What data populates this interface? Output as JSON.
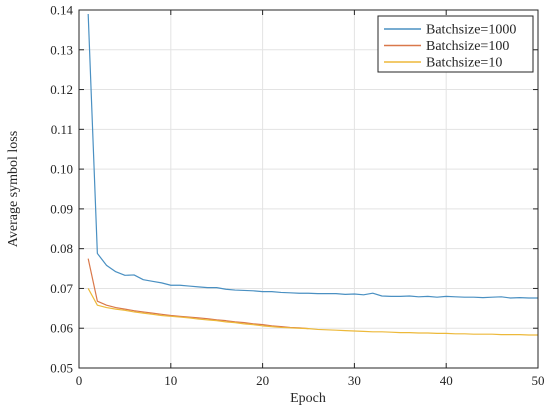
{
  "chart_data": {
    "type": "line",
    "xlabel": "Epoch",
    "ylabel": "Average symbol loss",
    "xlim": [
      0,
      50
    ],
    "ylim": [
      0.05,
      0.14
    ],
    "xticks": [
      0,
      10,
      20,
      30,
      40,
      50
    ],
    "xtick_labels": [
      "0",
      "10",
      "20",
      "30",
      "40",
      "50"
    ],
    "yticks": [
      0.05,
      0.06,
      0.07,
      0.08,
      0.09,
      0.1,
      0.11,
      0.12,
      0.13,
      0.14
    ],
    "ytick_labels": [
      "0.05",
      "0.06",
      "0.07",
      "0.08",
      "0.09",
      "0.10",
      "0.11",
      "0.12",
      "0.13",
      "0.14"
    ],
    "grid": true,
    "legend_position": "top-right",
    "series": [
      {
        "name": "Batchsize=1000",
        "color": "#4a90c2",
        "x": [
          1,
          2,
          3,
          4,
          5,
          6,
          7,
          8,
          9,
          10,
          11,
          12,
          13,
          14,
          15,
          16,
          17,
          18,
          19,
          20,
          21,
          22,
          23,
          24,
          25,
          26,
          27,
          28,
          29,
          30,
          31,
          32,
          33,
          34,
          35,
          36,
          37,
          38,
          39,
          40,
          41,
          42,
          43,
          44,
          45,
          46,
          47,
          48,
          49,
          50
        ],
        "y": [
          0.139,
          0.0788,
          0.0758,
          0.0742,
          0.0733,
          0.0734,
          0.0722,
          0.0718,
          0.0714,
          0.0708,
          0.0708,
          0.0706,
          0.0704,
          0.0702,
          0.0702,
          0.0698,
          0.0696,
          0.0695,
          0.0694,
          0.0692,
          0.0692,
          0.069,
          0.0689,
          0.0688,
          0.0688,
          0.0687,
          0.0687,
          0.0687,
          0.0685,
          0.0686,
          0.0684,
          0.0688,
          0.0681,
          0.068,
          0.068,
          0.0681,
          0.0679,
          0.068,
          0.0678,
          0.068,
          0.0679,
          0.0678,
          0.0678,
          0.0677,
          0.0678,
          0.0679,
          0.0676,
          0.0677,
          0.0676,
          0.0676
        ]
      },
      {
        "name": "Batchsize=100",
        "color": "#d9784a",
        "x": [
          1,
          2,
          3,
          4,
          5,
          6,
          7,
          8,
          9,
          10,
          11,
          12,
          13,
          14,
          15,
          16,
          17,
          18,
          19,
          20,
          21,
          22,
          23,
          24,
          25
        ],
        "y": [
          0.0775,
          0.0668,
          0.0658,
          0.0652,
          0.0648,
          0.0644,
          0.0641,
          0.0638,
          0.0635,
          0.0632,
          0.063,
          0.0628,
          0.0626,
          0.0624,
          0.0621,
          0.0619,
          0.0616,
          0.0614,
          0.0611,
          0.0609,
          0.0606,
          0.0604,
          0.0602,
          0.0601,
          0.0599
        ]
      },
      {
        "name": "Batchsize=10",
        "color": "#edb93a",
        "x": [
          1,
          2,
          3,
          4,
          5,
          6,
          7,
          8,
          9,
          10,
          11,
          12,
          13,
          14,
          15,
          16,
          17,
          18,
          19,
          20,
          21,
          22,
          23,
          24,
          25,
          26,
          27,
          28,
          29,
          30,
          31,
          32,
          33,
          34,
          35,
          36,
          37,
          38,
          39,
          40,
          41,
          42,
          43,
          44,
          45,
          46,
          47,
          48,
          49,
          50
        ],
        "y": [
          0.07,
          0.0658,
          0.0652,
          0.0648,
          0.0645,
          0.0641,
          0.0638,
          0.0635,
          0.0632,
          0.063,
          0.0628,
          0.0626,
          0.0623,
          0.0621,
          0.0619,
          0.0616,
          0.0614,
          0.0611,
          0.0609,
          0.0606,
          0.0604,
          0.0602,
          0.0601,
          0.06,
          0.0599,
          0.0597,
          0.0596,
          0.0595,
          0.0594,
          0.0593,
          0.0592,
          0.0591,
          0.0591,
          0.059,
          0.0589,
          0.0589,
          0.0588,
          0.0588,
          0.0587,
          0.0587,
          0.0586,
          0.0586,
          0.0585,
          0.0585,
          0.0585,
          0.0584,
          0.0584,
          0.0584,
          0.0583,
          0.0583
        ]
      }
    ]
  }
}
